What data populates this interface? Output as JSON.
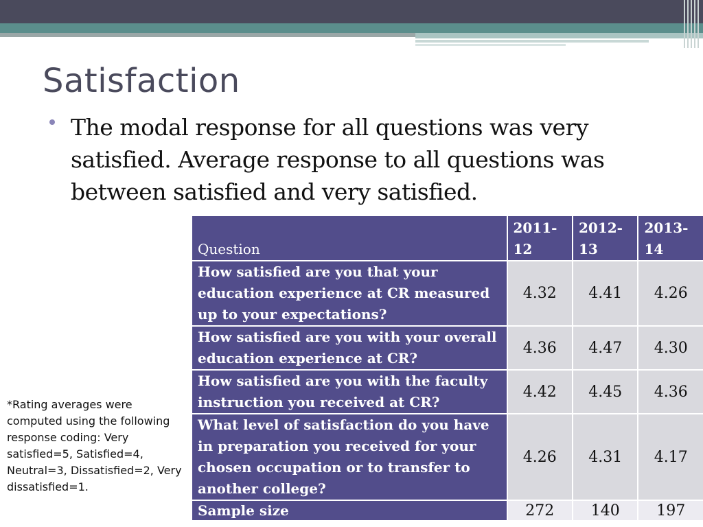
{
  "slide": {
    "title": "Satisfaction",
    "bullet": "The modal response for all questions was very satisfied. Average response to all questions was between satisfied and very satisfied.",
    "footnote": "*Rating averages were computed using the following response coding: Very satisfied=5, Satisfied=4, Neutral=3, Dissatisfied=2, Very dissatisfied=1."
  },
  "table": {
    "header": {
      "question": "Question",
      "years": [
        "2011-12",
        "2012-13",
        "2013-14"
      ]
    },
    "rows": [
      {
        "question": "How satisfied are you that your education experience at CR measured up to your expectations?",
        "values": [
          "4.32",
          "4.41",
          "4.26"
        ]
      },
      {
        "question": "How satisfied are you with your overall education experience at CR?",
        "values": [
          "4.36",
          "4.47",
          "4.30"
        ]
      },
      {
        "question": "How satisfied are you with the faculty instruction you received at CR?",
        "values": [
          "4.42",
          "4.45",
          "4.36"
        ]
      },
      {
        "question": "What level of satisfaction do you have in preparation you received for your chosen occupation or to transfer to another college?",
        "values": [
          "4.26",
          "4.31",
          "4.17"
        ]
      }
    ],
    "sample": {
      "label": "Sample size",
      "values": [
        "272",
        "140",
        "197"
      ]
    }
  },
  "colors": {
    "header_fill": "#524d8b",
    "value_fill": "#d9d9de",
    "top_bar": "#4a4a5c",
    "accent_teal": "#5b8e8c"
  }
}
